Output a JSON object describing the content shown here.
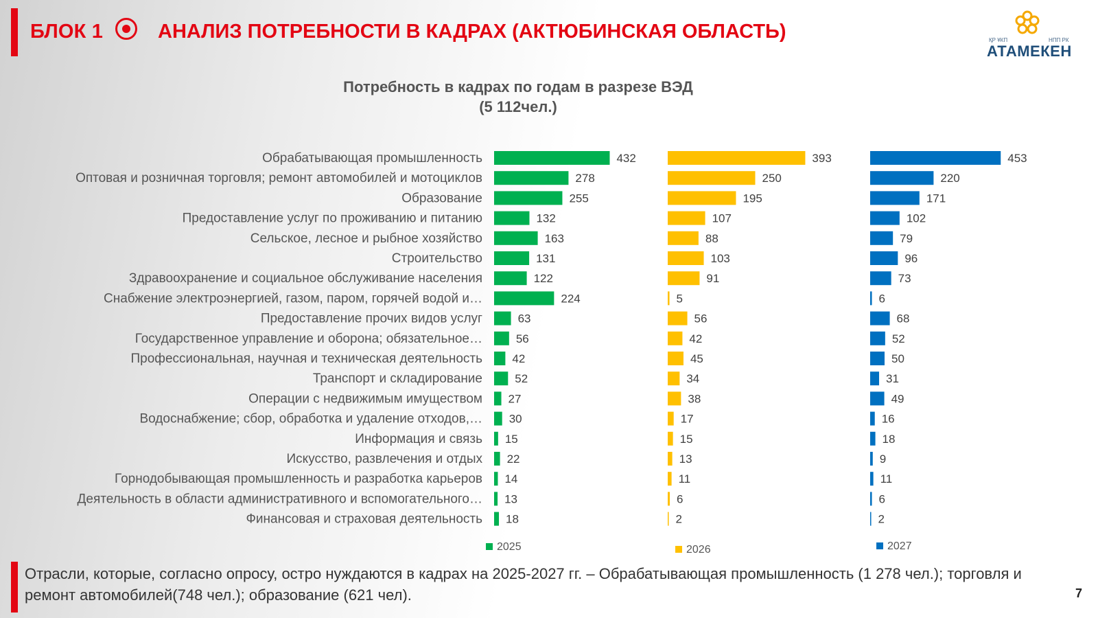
{
  "header": {
    "block_label": "БЛОК 1",
    "title": "АНАЛИЗ ПОТРЕБНОСТИ В КАДРАХ (АКТЮБИНСКАЯ ОБЛАСТЬ)"
  },
  "logo": {
    "left_caption": "ҚР ҰКП",
    "right_caption": "НПП РК",
    "name": "АТАМЕКЕН"
  },
  "chart_data": {
    "type": "bar",
    "title": "Потребность в кадрах по годам в разрезе ВЭД",
    "subtitle": "(5 112чел.)",
    "categories": [
      "Обрабатывающая промышленность",
      "Оптовая и розничная торговля; ремонт автомобилей и мотоциклов",
      "Образование",
      "Предоставление услуг по проживанию и питанию",
      "Сельское, лесное и рыбное хозяйство",
      "Строительство",
      "Здравоохранение и социальное обслуживание населения",
      "Снабжение электроэнергией, газом, паром, горячей водой и…",
      "Предоставление прочих видов услуг",
      "Государственное управление и оборона; обязательное…",
      "Профессиональная, научная и техническая деятельность",
      "Транспорт и складирование",
      "Операции с недвижимым имуществом",
      "Водоснабжение; сбор, обработка и удаление отходов,…",
      "Информация и связь",
      "Искусство, развлечения и отдых",
      "Горнодобывающая промышленность и разработка карьеров",
      "Деятельность в области административного и вспомогательного…",
      "Финансовая и страховая деятельность"
    ],
    "series": [
      {
        "name": "2025",
        "color": "#00b050",
        "values": [
          432,
          278,
          255,
          132,
          163,
          131,
          122,
          224,
          63,
          56,
          42,
          52,
          27,
          30,
          15,
          22,
          14,
          13,
          18
        ]
      },
      {
        "name": "2026",
        "color": "#ffc000",
        "values": [
          393,
          250,
          195,
          107,
          88,
          103,
          91,
          5,
          56,
          42,
          45,
          34,
          38,
          17,
          15,
          13,
          11,
          6,
          2
        ]
      },
      {
        "name": "2027",
        "color": "#0070c0",
        "values": [
          453,
          220,
          171,
          102,
          79,
          96,
          73,
          6,
          68,
          52,
          50,
          31,
          49,
          16,
          18,
          9,
          11,
          6,
          2
        ]
      }
    ],
    "legend_position": "bottom",
    "grid": false
  },
  "footer": {
    "text": "Отрасли, которые, согласно опросу, остро нуждаются в кадрах на 2025-2027 гг. – Обрабатывающая промышленность (1 278 чел.); торговля и ремонт автомобилей(748 чел.); образование (621 чел)."
  },
  "page_number": "7"
}
